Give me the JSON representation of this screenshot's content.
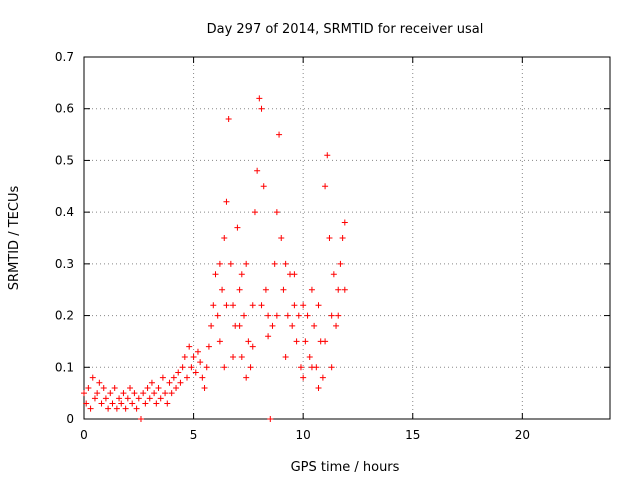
{
  "chart_data": {
    "type": "scatter",
    "title": "Day 297 of 2014, SRMTID for receiver usal",
    "xlabel": "GPS time / hours",
    "ylabel": "SRMTID / TECUs",
    "xlim": [
      0,
      24
    ],
    "ylim": [
      0,
      0.7
    ],
    "xticks": [
      0,
      5,
      10,
      15,
      20
    ],
    "xtick_labels": [
      "0",
      "5",
      "10",
      "15",
      "20"
    ],
    "yticks": [
      0,
      0.1,
      0.2,
      0.3,
      0.4,
      0.5,
      0.6,
      0.7
    ],
    "ytick_labels": [
      "0",
      "0.1",
      "0.2",
      "0.3",
      "0.4",
      "0.5",
      "0.6",
      "0.7"
    ],
    "grid": true,
    "marker": "+",
    "series": [
      {
        "name": "SRMTID",
        "color": "#ff0000",
        "points": [
          [
            0.0,
            0.05
          ],
          [
            0.1,
            0.03
          ],
          [
            0.2,
            0.06
          ],
          [
            0.3,
            0.02
          ],
          [
            0.4,
            0.08
          ],
          [
            0.5,
            0.04
          ],
          [
            0.6,
            0.05
          ],
          [
            0.7,
            0.07
          ],
          [
            0.8,
            0.03
          ],
          [
            0.9,
            0.06
          ],
          [
            1.0,
            0.04
          ],
          [
            1.1,
            0.02
          ],
          [
            1.2,
            0.05
          ],
          [
            1.3,
            0.03
          ],
          [
            1.4,
            0.06
          ],
          [
            1.5,
            0.02
          ],
          [
            1.6,
            0.04
          ],
          [
            1.7,
            0.03
          ],
          [
            1.8,
            0.05
          ],
          [
            1.9,
            0.02
          ],
          [
            2.0,
            0.04
          ],
          [
            2.1,
            0.06
          ],
          [
            2.2,
            0.03
          ],
          [
            2.3,
            0.05
          ],
          [
            2.4,
            0.02
          ],
          [
            2.5,
            0.04
          ],
          [
            2.6,
            0.0
          ],
          [
            2.7,
            0.05
          ],
          [
            2.8,
            0.03
          ],
          [
            2.9,
            0.06
          ],
          [
            3.0,
            0.04
          ],
          [
            3.1,
            0.07
          ],
          [
            3.2,
            0.05
          ],
          [
            3.3,
            0.03
          ],
          [
            3.4,
            0.06
          ],
          [
            3.5,
            0.04
          ],
          [
            3.6,
            0.08
          ],
          [
            3.7,
            0.05
          ],
          [
            3.8,
            0.03
          ],
          [
            3.9,
            0.07
          ],
          [
            4.0,
            0.05
          ],
          [
            4.1,
            0.08
          ],
          [
            4.2,
            0.06
          ],
          [
            4.3,
            0.09
          ],
          [
            4.4,
            0.07
          ],
          [
            4.5,
            0.1
          ],
          [
            4.6,
            0.12
          ],
          [
            4.7,
            0.08
          ],
          [
            4.8,
            0.14
          ],
          [
            4.9,
            0.1
          ],
          [
            5.0,
            0.12
          ],
          [
            5.1,
            0.09
          ],
          [
            5.2,
            0.13
          ],
          [
            5.3,
            0.11
          ],
          [
            5.4,
            0.08
          ],
          [
            5.5,
            0.06
          ],
          [
            5.6,
            0.1
          ],
          [
            5.7,
            0.14
          ],
          [
            5.8,
            0.18
          ],
          [
            5.9,
            0.22
          ],
          [
            6.0,
            0.28
          ],
          [
            6.1,
            0.2
          ],
          [
            6.2,
            0.15
          ],
          [
            6.3,
            0.25
          ],
          [
            6.4,
            0.35
          ],
          [
            6.5,
            0.42
          ],
          [
            6.6,
            0.58
          ],
          [
            6.7,
            0.3
          ],
          [
            6.8,
            0.22
          ],
          [
            6.9,
            0.18
          ],
          [
            7.0,
            0.37
          ],
          [
            7.1,
            0.25
          ],
          [
            7.2,
            0.12
          ],
          [
            7.3,
            0.2
          ],
          [
            7.4,
            0.3
          ],
          [
            7.5,
            0.15
          ],
          [
            7.6,
            0.1
          ],
          [
            7.7,
            0.22
          ],
          [
            7.8,
            0.4
          ],
          [
            7.9,
            0.48
          ],
          [
            8.0,
            0.62
          ],
          [
            8.1,
            0.6
          ],
          [
            8.2,
            0.45
          ],
          [
            8.3,
            0.25
          ],
          [
            8.4,
            0.2
          ],
          [
            8.5,
            0.0
          ],
          [
            8.6,
            0.18
          ],
          [
            8.7,
            0.3
          ],
          [
            8.8,
            0.4
          ],
          [
            8.9,
            0.55
          ],
          [
            9.0,
            0.35
          ],
          [
            9.1,
            0.25
          ],
          [
            9.2,
            0.3
          ],
          [
            9.3,
            0.2
          ],
          [
            9.4,
            0.28
          ],
          [
            9.5,
            0.18
          ],
          [
            9.6,
            0.22
          ],
          [
            9.7,
            0.15
          ],
          [
            9.8,
            0.2
          ],
          [
            9.9,
            0.1
          ],
          [
            10.0,
            0.08
          ],
          [
            10.1,
            0.15
          ],
          [
            10.2,
            0.2
          ],
          [
            10.3,
            0.12
          ],
          [
            10.4,
            0.25
          ],
          [
            10.5,
            0.18
          ],
          [
            10.6,
            0.1
          ],
          [
            10.7,
            0.22
          ],
          [
            10.8,
            0.15
          ],
          [
            10.9,
            0.08
          ],
          [
            11.0,
            0.45
          ],
          [
            11.1,
            0.51
          ],
          [
            11.2,
            0.35
          ],
          [
            11.3,
            0.2
          ],
          [
            11.4,
            0.28
          ],
          [
            11.5,
            0.18
          ],
          [
            11.6,
            0.25
          ],
          [
            11.7,
            0.3
          ],
          [
            11.8,
            0.35
          ],
          [
            11.9,
            0.38
          ],
          [
            6.2,
            0.3
          ],
          [
            6.5,
            0.22
          ],
          [
            6.8,
            0.12
          ],
          [
            7.1,
            0.18
          ],
          [
            7.4,
            0.08
          ],
          [
            7.7,
            0.14
          ],
          [
            8.1,
            0.22
          ],
          [
            8.4,
            0.16
          ],
          [
            8.8,
            0.2
          ],
          [
            9.2,
            0.12
          ],
          [
            9.6,
            0.28
          ],
          [
            10.0,
            0.22
          ],
          [
            10.4,
            0.1
          ],
          [
            10.7,
            0.06
          ],
          [
            11.0,
            0.15
          ],
          [
            11.3,
            0.1
          ],
          [
            11.6,
            0.2
          ],
          [
            11.9,
            0.25
          ],
          [
            6.4,
            0.1
          ],
          [
            7.2,
            0.28
          ]
        ]
      }
    ]
  }
}
